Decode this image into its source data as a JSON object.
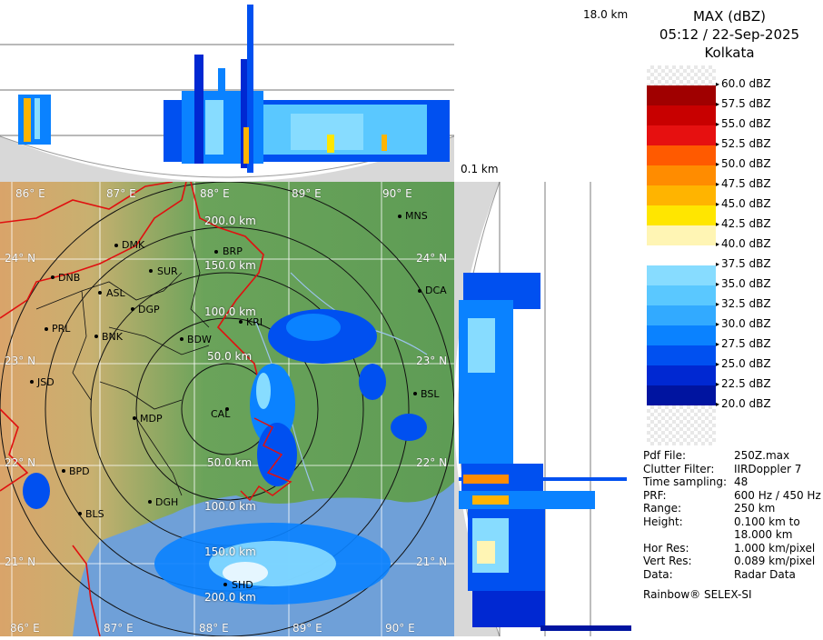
{
  "top_view": {
    "max_height_label": "18.0 km"
  },
  "side_view": {
    "min_height_label": "0.1 km"
  },
  "map": {
    "lon_labels_top": [
      "86° E",
      "87° E",
      "88° E",
      "89° E",
      "90° E"
    ],
    "lon_labels_bottom": [
      "86° E",
      "87° E",
      "88° E",
      "89° E",
      "90° E"
    ],
    "lat_labels_left": [
      "24° N",
      "23° N",
      "22° N",
      "21° N"
    ],
    "lat_labels_right": [
      "24° N",
      "23° N",
      "22° N",
      "21° N"
    ],
    "range_rings": [
      "200.0 km",
      "150.0 km",
      "100.0 km",
      "50.0 km",
      "50.0 km",
      "100.0 km",
      "150.0 km",
      "200.0 km"
    ],
    "cities": [
      "MNS",
      "DMK",
      "BRP",
      "SUR",
      "DNB",
      "ASL",
      "DGP",
      "DCA",
      "KRI",
      "PRL",
      "BNK",
      "BDW",
      "JSD",
      "MDP",
      "BSL",
      "BPD",
      "CAL",
      "DGH",
      "BLS",
      "SHD"
    ]
  },
  "legend": {
    "title_line1": "MAX (dBZ)",
    "title_line2": "05:12 / 22-Sep-2025",
    "title_line3": "Kolkata",
    "scale": [
      {
        "label": "60.0 dBZ",
        "color": "checker"
      },
      {
        "label": "57.5 dBZ",
        "color": "#a00000"
      },
      {
        "label": "55.0 dBZ",
        "color": "#c80000"
      },
      {
        "label": "52.5 dBZ",
        "color": "#e61010"
      },
      {
        "label": "50.0 dBZ",
        "color": "#ff5a00"
      },
      {
        "label": "47.5 dBZ",
        "color": "#ff8c00"
      },
      {
        "label": "45.0 dBZ",
        "color": "#ffb400"
      },
      {
        "label": "42.5 dBZ",
        "color": "#ffe600"
      },
      {
        "label": "40.0 dBZ",
        "color": "#fff5b4"
      },
      {
        "label": "37.5 dBZ",
        "color": "#ffffff"
      },
      {
        "label": "35.0 dBZ",
        "color": "#87dcff"
      },
      {
        "label": "32.5 dBZ",
        "color": "#5ac8ff"
      },
      {
        "label": "30.0 dBZ",
        "color": "#32aaff"
      },
      {
        "label": "27.5 dBZ",
        "color": "#0a82ff"
      },
      {
        "label": "25.0 dBZ",
        "color": "#0050f0"
      },
      {
        "label": "22.5 dBZ",
        "color": "#0028d2"
      },
      {
        "label": "20.0 dBZ",
        "color": "#0014a0"
      }
    ],
    "scale_bottom_fill": "checker"
  },
  "info": [
    {
      "key": "Pdf File:",
      "value": "250Z.max"
    },
    {
      "key": "Clutter Filter:",
      "value": "IIRDoppler 7"
    },
    {
      "key": "Time sampling:",
      "value": "48"
    },
    {
      "key": "PRF:",
      "value": "600 Hz / 450 Hz"
    },
    {
      "key": "Range:",
      "value": "250 km"
    },
    {
      "key": "Height:",
      "value": "0.100 km to"
    },
    {
      "key": "",
      "value": "18.000 km"
    },
    {
      "key": "Hor Res:",
      "value": "1.000 km/pixel"
    },
    {
      "key": "Vert Res:",
      "value": "0.089 km/pixel"
    },
    {
      "key": "Data:",
      "value": "Radar Data"
    }
  ],
  "footer": "Rainbow® SELEX-SI"
}
